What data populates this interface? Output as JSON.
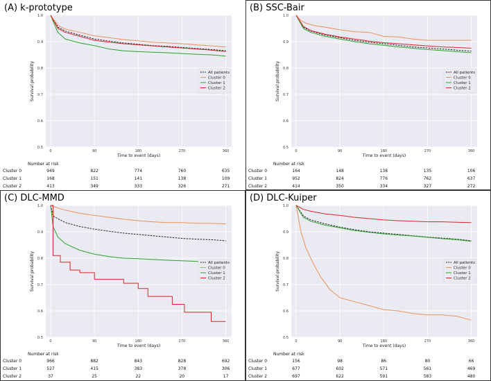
{
  "chart_data": [
    {
      "type": "line",
      "title": "(A) k-prototype",
      "xlabel": "Time to event (days)",
      "ylabel": "Survival probability",
      "xlim": [
        -10,
        372
      ],
      "ylim": [
        0.5,
        1.0
      ],
      "xticks": [
        0,
        90,
        180,
        270,
        360
      ],
      "yticks": [
        0.5,
        0.6,
        0.7,
        0.8,
        0.9,
        1.0
      ],
      "legend": [
        "All patients",
        "Cluster 0",
        "Cluster 1",
        "Cluster 2"
      ],
      "legend_position": "right",
      "series": [
        {
          "name": "All patients",
          "color": "#222222",
          "dash": true,
          "x": [
            0,
            15,
            30,
            60,
            90,
            120,
            150,
            180,
            210,
            240,
            270,
            300,
            330,
            360
          ],
          "y": [
            1.0,
            0.955,
            0.94,
            0.925,
            0.91,
            0.902,
            0.895,
            0.89,
            0.885,
            0.882,
            0.878,
            0.874,
            0.87,
            0.866
          ]
        },
        {
          "name": "Cluster 0",
          "color": "#f0905a",
          "dash": false,
          "x": [
            0,
            15,
            30,
            60,
            90,
            120,
            150,
            180,
            210,
            240,
            270,
            300,
            330,
            360
          ],
          "y": [
            1.0,
            0.962,
            0.948,
            0.935,
            0.922,
            0.915,
            0.908,
            0.903,
            0.898,
            0.895,
            0.892,
            0.888,
            0.884,
            0.88
          ]
        },
        {
          "name": "Cluster 1",
          "color": "#2ca02c",
          "dash": false,
          "x": [
            0,
            15,
            30,
            60,
            90,
            120,
            150,
            180,
            210,
            240,
            270,
            300,
            330,
            360
          ],
          "y": [
            1.0,
            0.935,
            0.91,
            0.895,
            0.885,
            0.872,
            0.865,
            0.862,
            0.86,
            0.858,
            0.855,
            0.852,
            0.85,
            0.845
          ]
        },
        {
          "name": "Cluster 2",
          "color": "#d62728",
          "dash": false,
          "x": [
            0,
            15,
            30,
            60,
            90,
            120,
            150,
            180,
            210,
            240,
            270,
            300,
            330,
            360
          ],
          "y": [
            1.0,
            0.95,
            0.935,
            0.92,
            0.905,
            0.898,
            0.892,
            0.888,
            0.884,
            0.88,
            0.876,
            0.872,
            0.868,
            0.862
          ]
        }
      ],
      "risk_table": {
        "header": "Number at risk",
        "rows": [
          {
            "label": "Cluster 0",
            "values": [
              "949",
              "822",
              "774",
              "760",
              "635"
            ]
          },
          {
            "label": "Cluster 1",
            "values": [
              "168",
              "151",
              "141",
              "138",
              "109"
            ]
          },
          {
            "label": "Cluster 2",
            "values": [
              "413",
              "349",
              "333",
              "326",
              "271"
            ]
          }
        ]
      }
    },
    {
      "type": "line",
      "title": "(B) SSC-Bair",
      "xlabel": "Time to event (days)",
      "ylabel": "Survival probability",
      "xlim": [
        -10,
        372
      ],
      "ylim": [
        0.5,
        1.0
      ],
      "xticks": [
        0,
        90,
        180,
        270,
        360
      ],
      "yticks": [
        0.5,
        0.6,
        0.7,
        0.8,
        0.9,
        1.0
      ],
      "legend": [
        "All patients",
        "Cluster 0",
        "Cluster 1",
        "Cluster 2"
      ],
      "legend_position": "right",
      "series": [
        {
          "name": "All patients",
          "color": "#222222",
          "dash": true,
          "x": [
            0,
            15,
            30,
            60,
            90,
            120,
            150,
            180,
            210,
            240,
            270,
            300,
            330,
            360
          ],
          "y": [
            1.0,
            0.955,
            0.94,
            0.925,
            0.915,
            0.905,
            0.898,
            0.892,
            0.886,
            0.88,
            0.876,
            0.872,
            0.868,
            0.864
          ]
        },
        {
          "name": "Cluster 0",
          "color": "#f0905a",
          "dash": false,
          "x": [
            0,
            10,
            20,
            40,
            60,
            90,
            120,
            150,
            180,
            210,
            240,
            270,
            300,
            330,
            360
          ],
          "y": [
            1.0,
            0.98,
            0.97,
            0.96,
            0.955,
            0.945,
            0.938,
            0.935,
            0.92,
            0.918,
            0.91,
            0.905,
            0.905,
            0.905,
            0.905
          ]
        },
        {
          "name": "Cluster 1",
          "color": "#2ca02c",
          "dash": false,
          "x": [
            0,
            15,
            30,
            60,
            90,
            120,
            150,
            180,
            210,
            240,
            270,
            300,
            330,
            360
          ],
          "y": [
            1.0,
            0.95,
            0.935,
            0.92,
            0.91,
            0.9,
            0.892,
            0.886,
            0.88,
            0.875,
            0.87,
            0.866,
            0.862,
            0.858
          ]
        },
        {
          "name": "Cluster 2",
          "color": "#d62728",
          "dash": false,
          "x": [
            0,
            15,
            30,
            60,
            90,
            120,
            150,
            180,
            210,
            240,
            270,
            300,
            330,
            360
          ],
          "y": [
            1.0,
            0.958,
            0.942,
            0.928,
            0.918,
            0.91,
            0.902,
            0.896,
            0.892,
            0.888,
            0.884,
            0.88,
            0.878,
            0.875
          ]
        }
      ],
      "risk_table": {
        "header": "Number at risk",
        "rows": [
          {
            "label": "Cluster 0",
            "values": [
              "164",
              "148",
              "138",
              "135",
              "106"
            ]
          },
          {
            "label": "Cluster 1",
            "values": [
              "952",
              "824",
              "776",
              "762",
              "637"
            ]
          },
          {
            "label": "Cluster 2",
            "values": [
              "414",
              "350",
              "334",
              "327",
              "272"
            ]
          }
        ]
      }
    },
    {
      "type": "line",
      "title": "(C) DLC-MMD",
      "xlabel": "Time to event (days)",
      "ylabel": "Survival probability",
      "xlim": [
        -10,
        372
      ],
      "ylim": [
        0.5,
        1.0
      ],
      "xticks": [
        0,
        90,
        180,
        270,
        360
      ],
      "yticks": [
        0.5,
        0.6,
        0.7,
        0.8,
        0.9,
        1.0
      ],
      "legend": [
        "All patients",
        "Cluster 0",
        "Cluster 1",
        "Cluster 2"
      ],
      "legend_position": "right",
      "series": [
        {
          "name": "All patients",
          "color": "#222222",
          "dash": true,
          "x": [
            0,
            5,
            15,
            30,
            60,
            90,
            120,
            150,
            180,
            210,
            240,
            270,
            300,
            330,
            360
          ],
          "y": [
            1.0,
            0.96,
            0.95,
            0.935,
            0.92,
            0.91,
            0.902,
            0.895,
            0.89,
            0.885,
            0.88,
            0.875,
            0.872,
            0.87,
            0.866
          ]
        },
        {
          "name": "Cluster 0",
          "color": "#f0905a",
          "dash": false,
          "x": [
            0,
            15,
            30,
            60,
            90,
            120,
            150,
            180,
            210,
            240,
            270,
            300,
            330,
            360
          ],
          "y": [
            1.0,
            0.99,
            0.982,
            0.97,
            0.962,
            0.955,
            0.948,
            0.942,
            0.938,
            0.935,
            0.935,
            0.932,
            0.932,
            0.93
          ]
        },
        {
          "name": "Cluster 1",
          "color": "#2ca02c",
          "dash": false,
          "x": [
            0,
            5,
            15,
            30,
            60,
            90,
            120,
            150,
            180,
            210,
            240,
            270,
            300,
            330,
            360
          ],
          "y": [
            1.0,
            0.92,
            0.88,
            0.855,
            0.83,
            0.815,
            0.806,
            0.8,
            0.798,
            0.795,
            0.792,
            0.79,
            0.788,
            0.785,
            0.775
          ]
        },
        {
          "name": "Cluster 2",
          "color": "#d62728",
          "dash": false,
          "step": true,
          "x": [
            0,
            5,
            20,
            40,
            60,
            90,
            120,
            150,
            180,
            200,
            220,
            250,
            275,
            305,
            330,
            360
          ],
          "y": [
            1.0,
            0.81,
            0.785,
            0.755,
            0.745,
            0.72,
            0.72,
            0.705,
            0.685,
            0.655,
            0.655,
            0.625,
            0.595,
            0.595,
            0.56,
            0.56
          ]
        }
      ],
      "risk_table": {
        "header": "Number at risk",
        "rows": [
          {
            "label": "Cluster 0",
            "values": [
              "966",
              "882",
              "843",
              "828",
              "692"
            ]
          },
          {
            "label": "Cluster 1",
            "values": [
              "527",
              "415",
              "383",
              "378",
              "306"
            ]
          },
          {
            "label": "Cluster 2",
            "values": [
              "37",
              "25",
              "22",
              "20",
              "17"
            ]
          }
        ]
      }
    },
    {
      "type": "line",
      "title": "(D) DLC-Kuiper",
      "xlabel": "Time to event (days)",
      "ylabel": "Survival probability",
      "xlim": [
        -10,
        372
      ],
      "ylim": [
        0.5,
        1.0
      ],
      "xticks": [
        0,
        90,
        180,
        270,
        360
      ],
      "yticks": [
        0.5,
        0.6,
        0.7,
        0.8,
        0.9,
        1.0
      ],
      "legend": [
        "All patients",
        "Cluster 0",
        "Cluster 1",
        "Cluster 2"
      ],
      "legend_position": "right",
      "series": [
        {
          "name": "All patients",
          "color": "#222222",
          "dash": true,
          "x": [
            0,
            15,
            30,
            60,
            90,
            120,
            150,
            180,
            210,
            240,
            270,
            300,
            330,
            360
          ],
          "y": [
            1.0,
            0.96,
            0.945,
            0.93,
            0.918,
            0.908,
            0.9,
            0.895,
            0.89,
            0.885,
            0.88,
            0.876,
            0.872,
            0.866
          ]
        },
        {
          "name": "Cluster 0",
          "color": "#f0905a",
          "dash": false,
          "x": [
            0,
            10,
            20,
            35,
            50,
            70,
            90,
            120,
            150,
            180,
            210,
            240,
            270,
            300,
            330,
            360
          ],
          "y": [
            1.0,
            0.9,
            0.84,
            0.78,
            0.73,
            0.68,
            0.65,
            0.635,
            0.62,
            0.605,
            0.6,
            0.59,
            0.585,
            0.585,
            0.58,
            0.565
          ]
        },
        {
          "name": "Cluster 1",
          "color": "#2ca02c",
          "dash": false,
          "x": [
            0,
            15,
            30,
            60,
            90,
            120,
            150,
            180,
            210,
            240,
            270,
            300,
            330,
            360
          ],
          "y": [
            1.0,
            0.955,
            0.94,
            0.925,
            0.915,
            0.905,
            0.898,
            0.892,
            0.888,
            0.884,
            0.879,
            0.874,
            0.87,
            0.864
          ]
        },
        {
          "name": "Cluster 2",
          "color": "#d62728",
          "dash": false,
          "x": [
            0,
            15,
            30,
            60,
            90,
            120,
            150,
            180,
            210,
            240,
            270,
            300,
            330,
            360
          ],
          "y": [
            1.0,
            0.985,
            0.978,
            0.968,
            0.962,
            0.955,
            0.95,
            0.945,
            0.942,
            0.94,
            0.938,
            0.938,
            0.936,
            0.935
          ]
        }
      ],
      "risk_table": {
        "header": "Number at risk",
        "rows": [
          {
            "label": "Cluster 0",
            "values": [
              "156",
              "98",
              "86",
              "80",
              "66"
            ]
          },
          {
            "label": "Cluster 1",
            "values": [
              "677",
              "602",
              "571",
              "561",
              "469"
            ]
          },
          {
            "label": "Cluster 2",
            "values": [
              "697",
              "622",
              "591",
              "583",
              "480"
            ]
          }
        ]
      }
    }
  ]
}
